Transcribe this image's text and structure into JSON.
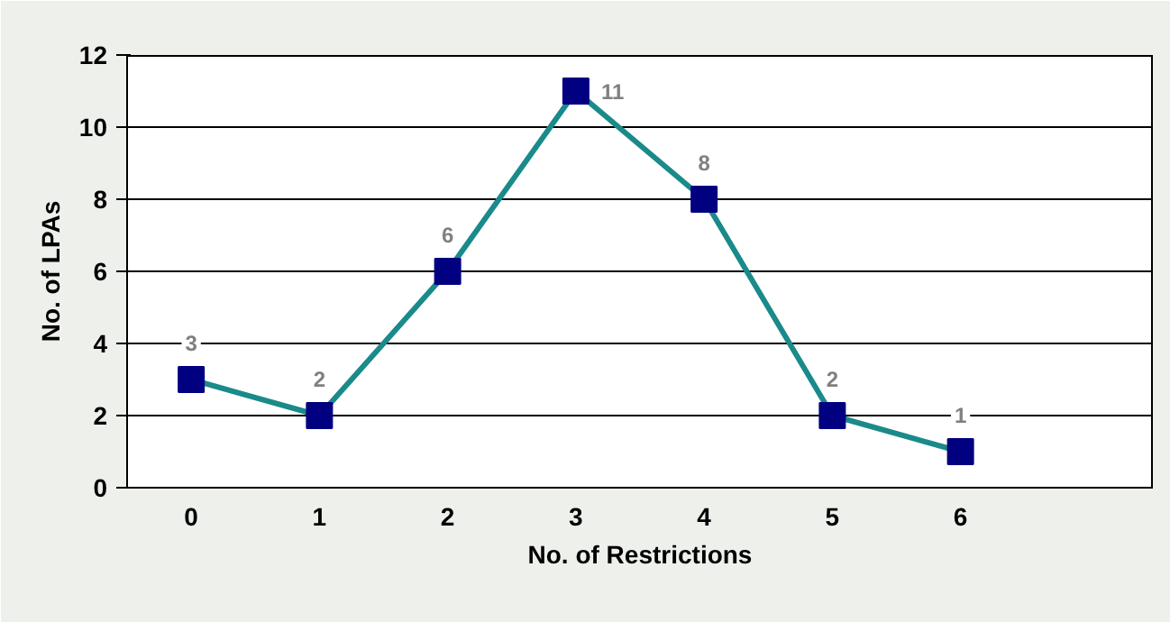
{
  "chart_data": {
    "type": "line",
    "xlabel": "No. of Restrictions",
    "ylabel": "No. of LPAs",
    "categories": [
      "0",
      "1",
      "2",
      "3",
      "4",
      "5",
      "6",
      null
    ],
    "series": [
      {
        "color": "#1a8a8a",
        "colors": [
          "#000080",
          "#000080",
          "#000080",
          "#000080",
          "#000080",
          "#000080",
          "#000080",
          null
        ],
        "values": [
          3,
          2,
          6,
          11,
          8,
          2,
          1,
          null
        ]
      }
    ],
    "marker": "square",
    "ylim": [
      0,
      12
    ],
    "yticks": [
      0,
      2,
      4,
      6,
      8,
      10,
      12
    ],
    "grid": "y",
    "data_labels": true
  }
}
